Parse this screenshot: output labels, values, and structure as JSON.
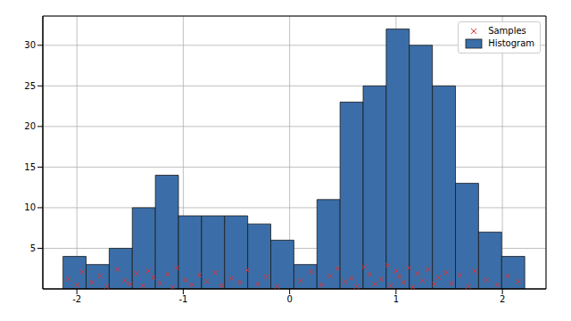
{
  "chart_data": {
    "type": "histogram",
    "bins": [
      -2.13,
      -1.913,
      -1.696,
      -1.479,
      -1.262,
      -1.045,
      -0.828,
      -0.611,
      -0.394,
      -0.177,
      0.04,
      0.257,
      0.474,
      0.691,
      0.908,
      1.125,
      1.342,
      1.559,
      1.776,
      1.993,
      2.21
    ],
    "series": [
      {
        "name": "Samples",
        "type": "scatter",
        "color": "#e03030",
        "marker": "x",
        "x": [
          -2.08,
          -2.0,
          -1.95,
          -1.86,
          -1.78,
          -1.72,
          -1.62,
          -1.55,
          -1.5,
          -1.44,
          -1.38,
          -1.33,
          -1.28,
          -1.22,
          -1.15,
          -1.1,
          -1.06,
          -0.98,
          -0.92,
          -0.85,
          -0.78,
          -0.7,
          -0.64,
          -0.55,
          -0.47,
          -0.4,
          -0.3,
          -0.22,
          -0.12,
          0.1,
          0.2,
          0.3,
          0.38,
          0.45,
          0.52,
          0.58,
          0.63,
          0.7,
          0.75,
          0.8,
          0.86,
          0.92,
          0.95,
          1.0,
          1.03,
          1.07,
          1.12,
          1.16,
          1.2,
          1.25,
          1.3,
          1.36,
          1.4,
          1.47,
          1.52,
          1.6,
          1.68,
          1.74,
          1.85,
          1.95,
          2.05,
          2.15
        ],
        "values": [
          1.2,
          0.5,
          2.1,
          0.8,
          1.6,
          0.3,
          2.4,
          1.0,
          0.6,
          1.9,
          0.4,
          2.2,
          1.4,
          0.7,
          1.8,
          0.2,
          2.6,
          1.1,
          0.5,
          1.7,
          0.9,
          2.0,
          0.4,
          1.3,
          0.8,
          2.3,
          0.6,
          1.5,
          0.3,
          1.0,
          2.1,
          0.5,
          1.6,
          2.5,
          0.9,
          1.3,
          0.3,
          2.7,
          1.8,
          0.6,
          1.2,
          2.9,
          0.4,
          2.2,
          1.5,
          0.8,
          2.6,
          0.2,
          1.9,
          1.0,
          2.4,
          0.6,
          1.4,
          2.0,
          0.7,
          1.7,
          0.3,
          2.2,
          1.1,
          0.5,
          1.6,
          0.9
        ]
      },
      {
        "name": "Histogram",
        "type": "bar",
        "color": "#3b6ea8",
        "values": [
          4,
          3,
          5,
          10,
          14,
          9,
          9,
          9,
          8,
          6,
          3,
          11,
          23,
          25,
          32,
          30,
          25,
          13,
          7,
          4
        ]
      }
    ],
    "xlim": [
      -2.32,
      2.41
    ],
    "xticks": [
      -2,
      -1,
      0,
      1,
      2
    ],
    "ylim": [
      0,
      33.6
    ],
    "yticks": [
      5,
      10,
      15,
      20,
      25,
      30
    ],
    "grid": true,
    "legend": "upper right"
  }
}
